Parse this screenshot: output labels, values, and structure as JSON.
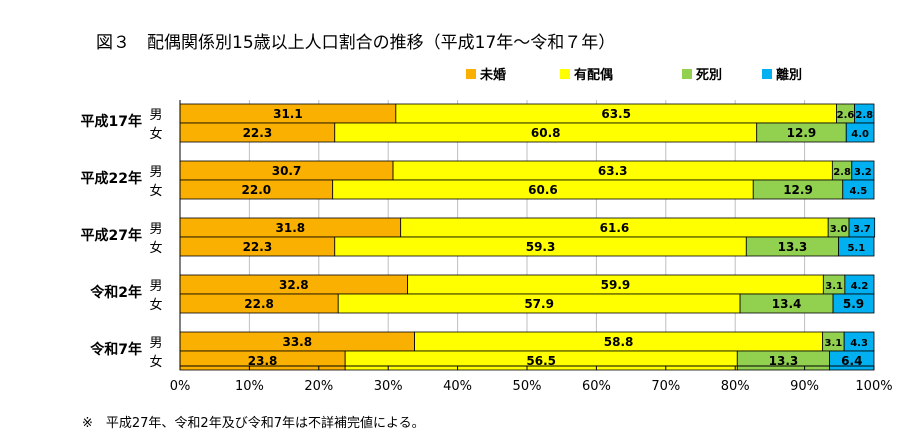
{
  "chart_data": {
    "type": "bar",
    "orientation": "horizontal",
    "stacked": true,
    "title": "図３　配偶関係別15歳以上人口割合の推移（平成17年～令和７年）",
    "legend": {
      "placement": "top-right",
      "entries": [
        {
          "name": "未婚",
          "color": "#F9B000"
        },
        {
          "name": "有配偶",
          "color": "#FFFF00"
        },
        {
          "name": "死別",
          "color": "#92D050"
        },
        {
          "name": "離別",
          "color": "#00B0F0"
        }
      ]
    },
    "groups": [
      {
        "label": "平成17年",
        "rows": [
          {
            "sex": "男",
            "values": [
              31.1,
              63.5,
              2.6,
              2.8
            ]
          },
          {
            "sex": "女",
            "values": [
              22.3,
              60.8,
              12.9,
              4.0
            ]
          }
        ]
      },
      {
        "label": "平成22年",
        "rows": [
          {
            "sex": "男",
            "values": [
              30.7,
              63.3,
              2.8,
              3.2
            ]
          },
          {
            "sex": "女",
            "values": [
              22.0,
              60.6,
              12.9,
              4.5
            ]
          }
        ]
      },
      {
        "label": "平成27年",
        "rows": [
          {
            "sex": "男",
            "values": [
              31.8,
              61.6,
              3.0,
              3.7
            ]
          },
          {
            "sex": "女",
            "values": [
              22.3,
              59.3,
              13.3,
              5.1
            ]
          }
        ]
      },
      {
        "label": "令和2年",
        "rows": [
          {
            "sex": "男",
            "values": [
              32.8,
              59.9,
              3.1,
              4.2
            ]
          },
          {
            "sex": "女",
            "values": [
              22.8,
              57.9,
              13.4,
              5.9
            ]
          }
        ]
      },
      {
        "label": "令和7年",
        "rows": [
          {
            "sex": "男",
            "values": [
              33.8,
              58.8,
              3.1,
              4.3
            ]
          },
          {
            "sex": "女",
            "values": [
              23.8,
              56.5,
              13.3,
              6.4
            ]
          }
        ]
      }
    ],
    "x_ticks": [
      "0%",
      "10%",
      "20%",
      "30%",
      "40%",
      "50%",
      "60%",
      "70%",
      "80%",
      "90%",
      "100%"
    ],
    "xlim": [
      0,
      100
    ],
    "grid": "vertical",
    "footnote": "※　平成27年、令和2年及び令和7年は不詳補完値による。"
  }
}
